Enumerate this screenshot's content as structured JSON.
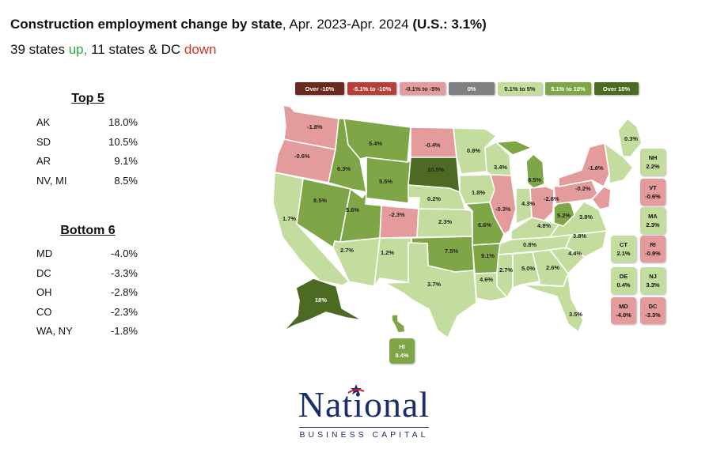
{
  "header": {
    "title_bold": "Construction employment change by state",
    "title_rest": ", Apr. 2023-Apr. 2024 ",
    "title_us": "(U.S.: 3.1%)",
    "sub_prefix": "39 states ",
    "sub_up": "up,",
    "sub_mid": " 11 states & DC ",
    "sub_down": "down"
  },
  "top5": {
    "heading": "Top 5",
    "rows": [
      {
        "state": "AK",
        "value": "18.0%"
      },
      {
        "state": "SD",
        "value": "10.5%"
      },
      {
        "state": "AR",
        "value": "9.1%"
      },
      {
        "state": "NV, MI",
        "value": "8.5%"
      }
    ]
  },
  "bottom6": {
    "heading": "Bottom 6",
    "rows": [
      {
        "state": "MD",
        "value": "-4.0%"
      },
      {
        "state": "DC",
        "value": "-3.3%"
      },
      {
        "state": "OH",
        "value": "-2.8%"
      },
      {
        "state": "CO",
        "value": "-2.3%"
      },
      {
        "state": "WA, NY",
        "value": "-1.8%"
      }
    ]
  },
  "legend": [
    {
      "label": "Over -10%",
      "color": "#6b2a1e",
      "text_color": "#ffffff"
    },
    {
      "label": "-5.1% to -10%",
      "color": "#b5403b",
      "text_color": "#ffffff"
    },
    {
      "label": "-0.1% to -5%",
      "color": "#e49b9b",
      "text_color": "#222222"
    },
    {
      "label": "0%",
      "color": "#808080",
      "text_color": "#ffffff"
    },
    {
      "label": "0.1% to 5%",
      "color": "#c3dd9e",
      "text_color": "#222222"
    },
    {
      "label": "5.1% to 10%",
      "color": "#7fa646",
      "text_color": "#ffffff"
    },
    {
      "label": "Over 10%",
      "color": "#4c6a22",
      "text_color": "#ffffff"
    }
  ],
  "states": [
    {
      "id": "WA",
      "value": "-1.8%",
      "color": "#e49b9b"
    },
    {
      "id": "OR",
      "value": "-0.6%",
      "color": "#e49b9b"
    },
    {
      "id": "CA",
      "value": "1.7%",
      "color": "#c3dd9e"
    },
    {
      "id": "NV",
      "value": "8.5%",
      "color": "#7fa646"
    },
    {
      "id": "ID",
      "value": "6.3%",
      "color": "#7fa646"
    },
    {
      "id": "MT",
      "value": "5.4%",
      "color": "#7fa646"
    },
    {
      "id": "WY",
      "value": "5.5%",
      "color": "#7fa646"
    },
    {
      "id": "UT",
      "value": "5.6%",
      "color": "#7fa646"
    },
    {
      "id": "AZ",
      "value": "2.7%",
      "color": "#c3dd9e"
    },
    {
      "id": "CO",
      "value": "-2.3%",
      "color": "#e49b9b"
    },
    {
      "id": "NM",
      "value": "1.2%",
      "color": "#c3dd9e"
    },
    {
      "id": "ND",
      "value": "-0.4%",
      "color": "#e49b9b"
    },
    {
      "id": "SD",
      "value": "10.5%",
      "color": "#4c6a22"
    },
    {
      "id": "NE",
      "value": "0.2%",
      "color": "#c3dd9e"
    },
    {
      "id": "KS",
      "value": "2.3%",
      "color": "#c3dd9e"
    },
    {
      "id": "OK",
      "value": "7.5%",
      "color": "#7fa646"
    },
    {
      "id": "TX",
      "value": "3.7%",
      "color": "#c3dd9e"
    },
    {
      "id": "MN",
      "value": "0.8%",
      "color": "#c3dd9e"
    },
    {
      "id": "IA",
      "value": "1.8%",
      "color": "#c3dd9e"
    },
    {
      "id": "MO",
      "value": "6.6%",
      "color": "#7fa646"
    },
    {
      "id": "AR",
      "value": "9.1%",
      "color": "#7fa646"
    },
    {
      "id": "LA",
      "value": "4.6%",
      "color": "#c3dd9e"
    },
    {
      "id": "WI",
      "value": "3.4%",
      "color": "#c3dd9e"
    },
    {
      "id": "IL",
      "value": "-0.3%",
      "color": "#e49b9b"
    },
    {
      "id": "MI",
      "value": "8.5%",
      "color": "#7fa646"
    },
    {
      "id": "IN",
      "value": "4.3%",
      "color": "#c3dd9e"
    },
    {
      "id": "OH",
      "value": "-2.8%",
      "color": "#e49b9b"
    },
    {
      "id": "KY",
      "value": "4.8%",
      "color": "#c3dd9e"
    },
    {
      "id": "TN",
      "value": "0.8%",
      "color": "#c3dd9e"
    },
    {
      "id": "MS",
      "value": "2.7%",
      "color": "#c3dd9e"
    },
    {
      "id": "AL",
      "value": "5.0%",
      "color": "#c3dd9e"
    },
    {
      "id": "GA",
      "value": "2.6%",
      "color": "#c3dd9e"
    },
    {
      "id": "FL",
      "value": "3.5%",
      "color": "#c3dd9e"
    },
    {
      "id": "SC",
      "value": "4.4%",
      "color": "#c3dd9e"
    },
    {
      "id": "NC",
      "value": "3.8%",
      "color": "#c3dd9e"
    },
    {
      "id": "VA",
      "value": "3.8%",
      "color": "#c3dd9e"
    },
    {
      "id": "WV",
      "value": "5.2%",
      "color": "#7fa646"
    },
    {
      "id": "PA",
      "value": "-0.2%",
      "color": "#e49b9b"
    },
    {
      "id": "NY",
      "value": "-1.8%",
      "color": "#e49b9b"
    },
    {
      "id": "ME",
      "value": "0.3%",
      "color": "#c3dd9e"
    },
    {
      "id": "AK",
      "value": "18%",
      "color": "#4c6a22"
    },
    {
      "id": "HI",
      "value": "8.4%",
      "color": "#7fa646"
    }
  ],
  "small_states": [
    {
      "id": "NH",
      "value": "2.2%",
      "color": "#c3dd9e"
    },
    {
      "id": "VT",
      "value": "-0.6%",
      "color": "#e49b9b"
    },
    {
      "id": "MA",
      "value": "2.3%",
      "color": "#c3dd9e"
    },
    {
      "id": "CT",
      "value": "2.1%",
      "color": "#c3dd9e"
    },
    {
      "id": "RI",
      "value": "-0.9%",
      "color": "#e49b9b"
    },
    {
      "id": "DE",
      "value": "0.4%",
      "color": "#c3dd9e"
    },
    {
      "id": "NJ",
      "value": "3.3%",
      "color": "#c3dd9e"
    },
    {
      "id": "MD",
      "value": "-4.0%",
      "color": "#e49b9b"
    },
    {
      "id": "DC",
      "value": "-3.3%",
      "color": "#e49b9b"
    }
  ],
  "logo": {
    "wordmark": "National",
    "tagline": "BUSINESS CAPITAL"
  }
}
